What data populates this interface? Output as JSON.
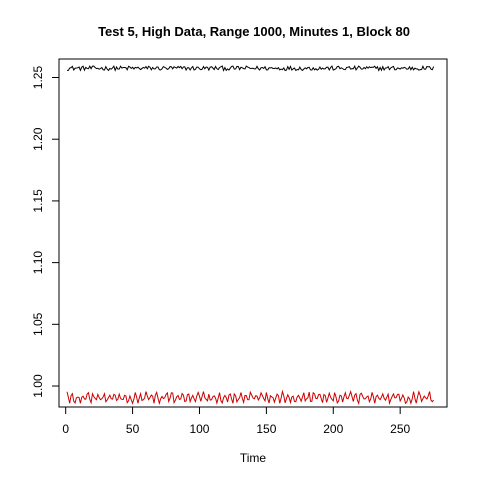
{
  "chart_data": {
    "type": "line",
    "title": "Test 5, High Data, Range 1000, Minutes 1, Block 80",
    "xlabel": "Time",
    "ylabel": "",
    "xlim": [
      -5,
      285
    ],
    "ylim": [
      0.983,
      1.265
    ],
    "x_ticks": [
      0,
      50,
      100,
      150,
      200,
      250
    ],
    "y_ticks": [
      1.0,
      1.05,
      1.1,
      1.15,
      1.2,
      1.25
    ],
    "x_tick_labels": [
      "0",
      "50",
      "100",
      "150",
      "200",
      "250"
    ],
    "y_tick_labels": [
      "1.00",
      "1.05",
      "1.10",
      "1.15",
      "1.20",
      "1.25"
    ],
    "grid": false,
    "legend": "none",
    "n_points": 275,
    "series": [
      {
        "color": "#000000",
        "center": 1.2575,
        "amplitude": 0.0018,
        "min": 1.2555,
        "max": 1.2595
      },
      {
        "color": "#cc0000",
        "center": 0.9905,
        "amplitude": 0.0045,
        "min": 0.986,
        "max": 0.9955
      }
    ]
  }
}
